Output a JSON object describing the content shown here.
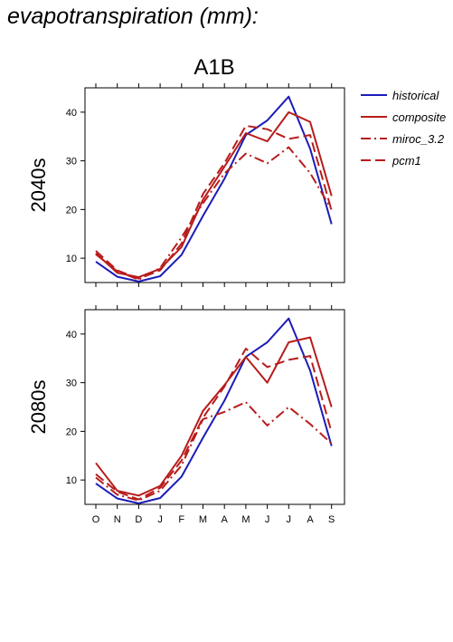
{
  "page_title": "evapotranspiration (mm):",
  "scenario": "A1B",
  "legend": [
    {
      "name": "historical",
      "color": "#1c1cb8",
      "dash": "solid"
    },
    {
      "name": "composite",
      "color": "#b81c1c",
      "dash": "solid"
    },
    {
      "name": "miroc_3.2",
      "color": "#b81c1c",
      "dash": "dashdot"
    },
    {
      "name": "pcm1",
      "color": "#b81c1c",
      "dash": "dash"
    }
  ],
  "chart_data": [
    {
      "type": "line",
      "ylabel": "2040s",
      "categories": [
        "O",
        "N",
        "D",
        "J",
        "F",
        "M",
        "A",
        "M",
        "J",
        "J",
        "A",
        "S"
      ],
      "ylim": [
        5,
        45
      ],
      "yticks": [
        10,
        20,
        30,
        40
      ],
      "series": [
        {
          "name": "historical",
          "values": [
            9.3,
            6.2,
            5.2,
            6.3,
            10.7,
            18.7,
            26.3,
            35.3,
            38.3,
            43.2,
            32.5,
            17.0
          ]
        },
        {
          "name": "composite",
          "values": [
            11.0,
            7.0,
            6.1,
            7.8,
            12.3,
            22.0,
            28.8,
            35.7,
            34.0,
            40.0,
            38.0,
            22.8
          ]
        },
        {
          "name": "miroc_3.2",
          "values": [
            10.8,
            7.3,
            5.6,
            8.0,
            14.3,
            21.3,
            27.4,
            31.5,
            29.5,
            32.8,
            27.5,
            20.0
          ]
        },
        {
          "name": "pcm1",
          "values": [
            11.5,
            7.5,
            5.8,
            7.5,
            13.0,
            23.2,
            29.5,
            37.2,
            36.5,
            34.5,
            35.3,
            19.8
          ]
        }
      ]
    },
    {
      "type": "line",
      "ylabel": "2080s",
      "categories": [
        "O",
        "N",
        "D",
        "J",
        "F",
        "M",
        "A",
        "M",
        "J",
        "J",
        "A",
        "S"
      ],
      "ylim": [
        5,
        45
      ],
      "yticks": [
        10,
        20,
        30,
        40
      ],
      "series": [
        {
          "name": "historical",
          "values": [
            9.3,
            6.2,
            5.2,
            6.3,
            10.7,
            18.7,
            26.3,
            35.3,
            38.3,
            43.2,
            32.5,
            17.0
          ]
        },
        {
          "name": "composite",
          "values": [
            13.5,
            7.8,
            6.8,
            8.8,
            15.0,
            24.2,
            29.5,
            35.3,
            30.0,
            38.3,
            39.3,
            25.0
          ]
        },
        {
          "name": "miroc_3.2",
          "values": [
            10.5,
            7.0,
            5.8,
            7.8,
            13.0,
            22.5,
            24.0,
            26.0,
            21.2,
            25.0,
            21.5,
            17.5
          ]
        },
        {
          "name": "pcm1",
          "values": [
            11.2,
            7.6,
            6.0,
            8.4,
            14.0,
            22.8,
            29.2,
            37.0,
            33.2,
            34.7,
            35.5,
            19.8
          ]
        }
      ]
    }
  ]
}
